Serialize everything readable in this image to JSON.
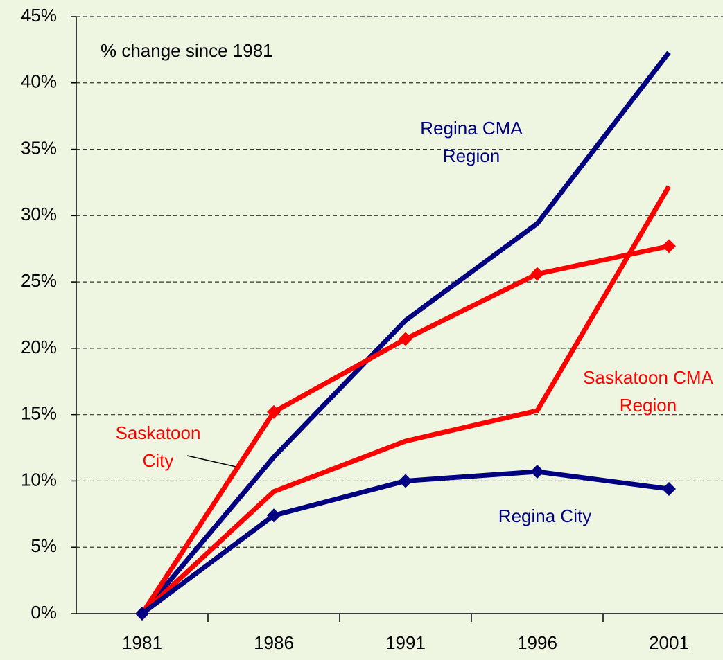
{
  "chart_data": {
    "type": "line",
    "annotation": "% change since 1981",
    "categories": [
      "1981",
      "1986",
      "1991",
      "1996",
      "2001"
    ],
    "series": [
      {
        "name": "Regina CMA Region",
        "color": "#000080",
        "marker": false,
        "values": [
          0,
          11.8,
          22.1,
          29.4,
          42.3
        ]
      },
      {
        "name": "Saskatoon City",
        "color": "#ff0000",
        "marker": true,
        "values": [
          0,
          15.2,
          20.7,
          25.6,
          27.7
        ]
      },
      {
        "name": "Saskatoon CMA Region",
        "color": "#ff0000",
        "marker": false,
        "values": [
          0,
          9.2,
          13.0,
          15.3,
          32.2
        ]
      },
      {
        "name": "Regina City",
        "color": "#000080",
        "marker": true,
        "values": [
          0,
          7.4,
          10.0,
          10.7,
          9.4
        ]
      }
    ],
    "ylim": [
      0,
      45
    ],
    "yticks": [
      {
        "value": 0,
        "label": "0%"
      },
      {
        "value": 5,
        "label": "5%"
      },
      {
        "value": 10,
        "label": "10%"
      },
      {
        "value": 15,
        "label": "15%"
      },
      {
        "value": 20,
        "label": "20%"
      },
      {
        "value": 25,
        "label": "25%"
      },
      {
        "value": 30,
        "label": "30%"
      },
      {
        "value": 35,
        "label": "35%"
      },
      {
        "value": 40,
        "label": "40%"
      },
      {
        "value": 45,
        "label": "45%"
      }
    ],
    "grid": true
  }
}
